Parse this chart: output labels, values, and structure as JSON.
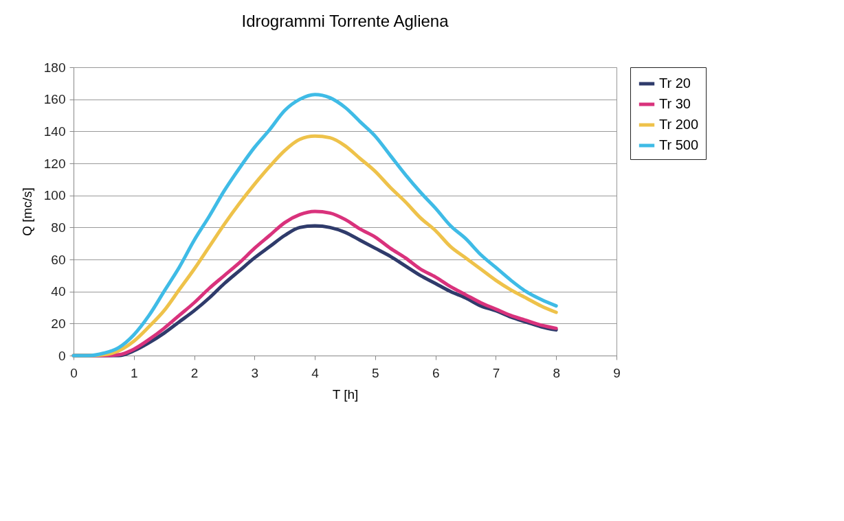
{
  "chart_data": {
    "type": "line",
    "title": "Idrogrammi Torrente Agliena",
    "xlabel": "T [h]",
    "ylabel": "Q [mc/s]",
    "x": [
      0,
      0.25,
      0.5,
      0.75,
      1,
      1.25,
      1.5,
      1.75,
      2,
      2.25,
      2.5,
      2.75,
      3,
      3.25,
      3.5,
      3.75,
      4,
      4.25,
      4.5,
      4.75,
      5,
      5.25,
      5.5,
      5.75,
      6,
      6.25,
      6.5,
      6.75,
      7,
      7.25,
      7.5,
      7.75,
      8
    ],
    "series": [
      {
        "name": "Tr 20",
        "color": "#2f3b6b",
        "values": [
          0,
          0,
          0,
          0,
          3,
          8,
          14,
          21,
          28,
          36,
          45,
          53,
          61,
          68,
          75,
          80,
          81,
          80,
          77,
          72,
          67,
          62,
          56,
          50,
          45,
          40,
          36,
          31,
          28,
          24,
          21,
          18,
          16
        ]
      },
      {
        "name": "Tr 30",
        "color": "#d9327c",
        "values": [
          0,
          0,
          0,
          0.5,
          4,
          10,
          17,
          25,
          33,
          42,
          50,
          58,
          67,
          75,
          83,
          88,
          90,
          89,
          85,
          79,
          74,
          67,
          61,
          54,
          49,
          43,
          38,
          33,
          29,
          25,
          22,
          19,
          17
        ]
      },
      {
        "name": "Tr 200",
        "color": "#eec24a",
        "values": [
          0,
          0,
          0.5,
          3,
          9,
          18,
          28,
          41,
          54,
          68,
          82,
          95,
          107,
          118,
          128,
          135,
          137,
          136,
          131,
          123,
          115,
          105,
          96,
          86,
          78,
          68,
          61,
          54,
          47,
          41,
          36,
          31,
          27
        ]
      },
      {
        "name": "Tr 500",
        "color": "#3fbbe6",
        "values": [
          0,
          0,
          1.5,
          5,
          13,
          25,
          40,
          55,
          72,
          87,
          103,
          117,
          130,
          141,
          153,
          160,
          163,
          161,
          155,
          146,
          137,
          125,
          113,
          102,
          92,
          81,
          73,
          63,
          55,
          47,
          40,
          35,
          31
        ]
      }
    ],
    "xlim": [
      0,
      9
    ],
    "xticks": [
      0,
      1,
      2,
      3,
      4,
      5,
      6,
      7,
      8,
      9
    ],
    "ylim": [
      0,
      180
    ],
    "yticks": [
      0,
      20,
      40,
      60,
      80,
      100,
      120,
      140,
      160,
      180
    ],
    "grid": "y",
    "legend": "right",
    "marker": "none",
    "line_style": "solid"
  }
}
